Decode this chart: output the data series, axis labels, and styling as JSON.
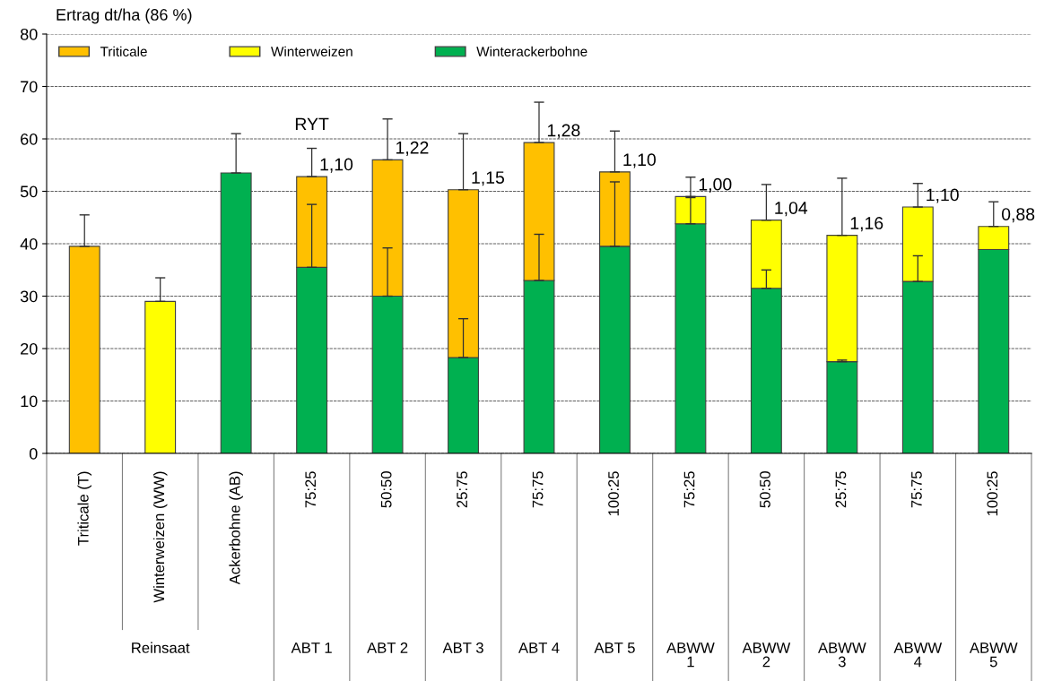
{
  "chart_data": {
    "type": "bar",
    "stacked": true,
    "ylabel": "Ertrag dt/ha (86 %)",
    "categories": [
      "Triticale (T)",
      "Winterweizen (WW)",
      "Ackerbohne (AB)",
      "75:25",
      "50:50",
      "25:75",
      "75:75",
      "100:25",
      "75:25",
      "50:50",
      "25:75",
      "75:75",
      "100:25"
    ],
    "series": [
      {
        "name": "Winterackerbohne",
        "color": "#00b050",
        "values": [
          null,
          null,
          53.5,
          35.5,
          30,
          18.3,
          33,
          39.5,
          43.8,
          31.5,
          17.5,
          32.8,
          38.9
        ],
        "errors": [
          null,
          null,
          [
            53.5,
            61
          ],
          [
            35.5,
            47.5
          ],
          [
            30,
            39.2
          ],
          [
            18.3,
            25.7
          ],
          [
            33,
            41.8
          ],
          [
            39.5,
            51.8
          ],
          [
            43.8,
            48.8
          ],
          [
            31.5,
            35
          ],
          [
            17.5,
            17.8
          ],
          [
            32.8,
            37.7
          ],
          null
        ]
      },
      {
        "name": "Winterweizen",
        "color": "#ffff00",
        "values": [
          null,
          29,
          null,
          null,
          null,
          null,
          null,
          null,
          5.2,
          13,
          24.1,
          14.2,
          4.4
        ],
        "errors": [
          null,
          [
            29,
            33.5
          ],
          null,
          null,
          null,
          null,
          null,
          null,
          [
            49,
            52.7
          ],
          [
            44.5,
            51.3
          ],
          [
            41.6,
            52.5
          ],
          [
            47,
            51.5
          ],
          [
            43.3,
            48
          ]
        ]
      },
      {
        "name": "Triticale",
        "color": "#ffc000",
        "values": [
          39.5,
          null,
          null,
          17.3,
          26,
          32,
          26.3,
          14.2,
          null,
          null,
          null,
          null,
          null
        ],
        "errors": [
          [
            39.5,
            45.5
          ],
          null,
          null,
          [
            52.8,
            58.2
          ],
          [
            56,
            63.8
          ],
          [
            50.3,
            61
          ],
          [
            59.3,
            67
          ],
          [
            53.7,
            61.5
          ],
          null,
          null,
          null,
          null,
          null
        ]
      }
    ],
    "ylim": [
      0,
      80
    ],
    "yticks": [
      0,
      10,
      20,
      30,
      40,
      50,
      60,
      70,
      80
    ],
    "grid": "y",
    "legend": "top left",
    "annotations": [
      "RYT",
      "1,10",
      "1,22",
      "1,15",
      "1,28",
      "1,10",
      "1,00",
      "1,04",
      "1,16",
      "1,10",
      "0,88",
      "Reinsaat",
      "ABT 1",
      "ABT 2",
      "ABT 3",
      "ABT 4",
      "ABT 5",
      "ABWW\n1",
      "ABWW\n2",
      "ABWW\n3",
      "ABWW\n4",
      "ABWW\n5"
    ]
  }
}
